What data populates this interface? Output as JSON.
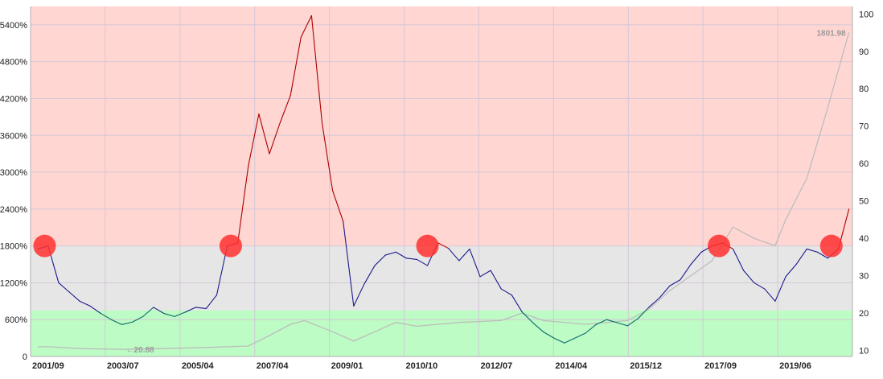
{
  "colors": {
    "zone_high": "#ffd6d2",
    "zone_mid": "#e6e6e6",
    "zone_low": "#bdfcc4",
    "gridline": "#d4c8d8",
    "pe_line_mid": "#1a1a8c",
    "pe_line_high": "#aa0000",
    "pe_line_low": "#0b6b6b",
    "price_line": "#bdbdbd",
    "marker": "#ff3030"
  },
  "chart_data": {
    "type": "line",
    "title": "",
    "xlabel": "",
    "ylabel": "",
    "grid": true,
    "legend": "none",
    "x_ticks": [
      "2001/09",
      "2003/07",
      "2005/04",
      "2007/04",
      "2009/01",
      "2010/10",
      "2012/07",
      "2014/04",
      "2015/12",
      "2017/09",
      "2019/06"
    ],
    "y_left_ticks": [
      "0",
      "600%",
      "1200%",
      "1800%",
      "2400%",
      "3000%",
      "3600%",
      "4200%",
      "4800%",
      "5400%"
    ],
    "y_left_range": [
      0,
      5700
    ],
    "y_right_ticks": [
      "10",
      "20",
      "30",
      "40",
      "50",
      "60",
      "70",
      "80",
      "90",
      "100"
    ],
    "y_right_range": [
      8.4,
      102
    ],
    "zones": [
      {
        "name": "high",
        "from": 1800,
        "to": 5700
      },
      {
        "name": "mid",
        "from": 750,
        "to": 1800
      },
      {
        "name": "low",
        "from": 0,
        "to": 750
      }
    ],
    "series": [
      {
        "axis": "left",
        "x": [
          "2001-06",
          "2001-09",
          "2001-12",
          "2002-03",
          "2002-06",
          "2002-09",
          "2002-12",
          "2003-03",
          "2003-06",
          "2003-09",
          "2003-12",
          "2004-03",
          "2004-06",
          "2004-09",
          "2004-12",
          "2005-03",
          "2005-06",
          "2005-09",
          "2005-12",
          "2006-03",
          "2006-06",
          "2006-09",
          "2006-12",
          "2007-03",
          "2007-06",
          "2007-09",
          "2007-12",
          "2008-03",
          "2008-06",
          "2008-09",
          "2008-12",
          "2009-03",
          "2009-06",
          "2009-09",
          "2009-12",
          "2010-03",
          "2010-06",
          "2010-09",
          "2010-12",
          "2011-03",
          "2011-06",
          "2011-09",
          "2011-12",
          "2012-03",
          "2012-06",
          "2012-09",
          "2012-12",
          "2013-03",
          "2013-06",
          "2013-09",
          "2013-12",
          "2014-03",
          "2014-06",
          "2014-09",
          "2014-12",
          "2015-03",
          "2015-06",
          "2015-09",
          "2015-12",
          "2016-03",
          "2016-06",
          "2016-09",
          "2016-12",
          "2017-03",
          "2017-06",
          "2017-09",
          "2017-12",
          "2018-03",
          "2018-06",
          "2018-09",
          "2018-12",
          "2019-03",
          "2019-06",
          "2019-09",
          "2019-12",
          "2020-03",
          "2020-06",
          "2020-09"
        ],
        "values": [
          1750,
          1800,
          1200,
          1050,
          900,
          820,
          700,
          600,
          520,
          560,
          650,
          800,
          700,
          650,
          720,
          800,
          780,
          1000,
          1800,
          1850,
          3100,
          3950,
          3300,
          3800,
          4250,
          5200,
          5550,
          3800,
          2700,
          2200,
          820,
          1180,
          1480,
          1650,
          1700,
          1600,
          1580,
          1480,
          1850,
          1760,
          1560,
          1750,
          1300,
          1400,
          1100,
          1000,
          720,
          550,
          400,
          300,
          220,
          300,
          380,
          520,
          600,
          550,
          500,
          620,
          800,
          950,
          1150,
          1250,
          1500,
          1700,
          1800,
          1850,
          1750,
          1400,
          1200,
          1100,
          900,
          1300,
          1500,
          1750,
          1700,
          1600,
          1750,
          2400
        ]
      },
      {
        "axis": "right",
        "x": [
          "2001-06",
          "2001-09",
          "2002-06",
          "2003-06",
          "2004-06",
          "2005-06",
          "2006-06",
          "2006-12",
          "2007-06",
          "2007-10",
          "2008-06",
          "2008-12",
          "2009-06",
          "2009-12",
          "2010-06",
          "2011-06",
          "2012-06",
          "2012-12",
          "2013-06",
          "2014-06",
          "2015-06",
          "2015-12",
          "2016-06",
          "2017-06",
          "2017-12",
          "2018-06",
          "2018-12",
          "2019-03",
          "2019-09",
          "2020-03",
          "2020-09"
        ],
        "values": [
          11,
          11,
          10.5,
          10.3,
          10.5,
          10.8,
          11.2,
          14,
          17,
          18,
          15,
          12.5,
          15,
          17.5,
          16.5,
          17.5,
          18,
          20,
          18,
          17,
          18,
          21,
          26,
          34,
          43,
          40,
          38,
          45,
          56,
          75,
          95
        ],
        "annotations": [
          "20.88",
          "1801.98"
        ]
      }
    ],
    "markers": [
      {
        "x": "2001-08",
        "value": 1800
      },
      {
        "x": "2006-01",
        "value": 1800
      },
      {
        "x": "2010-09",
        "value": 1800
      },
      {
        "x": "2017-08",
        "value": 1800
      },
      {
        "x": "2020-04",
        "value": 1800
      }
    ]
  }
}
